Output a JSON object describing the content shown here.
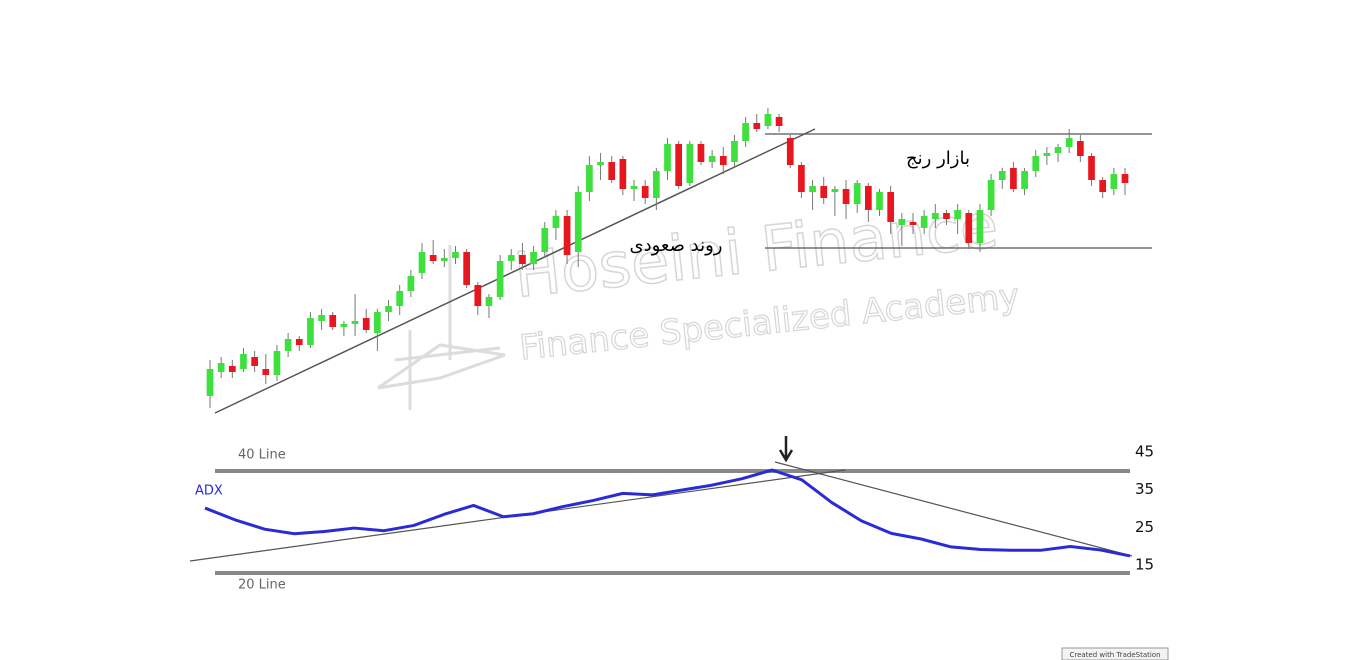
{
  "chart_data": [
    {
      "type": "candlestick",
      "annotations": [
        "روند صعودی",
        "بازار رنج"
      ],
      "open": [
        8,
        16,
        18,
        17,
        21,
        17,
        15,
        23,
        27,
        25,
        33,
        35,
        31,
        32,
        34,
        29,
        36,
        38,
        43,
        49,
        55,
        53,
        54,
        56,
        45,
        38,
        41,
        53,
        55,
        52,
        56,
        64,
        68,
        56,
        76,
        85,
        86,
        87,
        77,
        78,
        74,
        83,
        92,
        79,
        92,
        86,
        88,
        86,
        93,
        99,
        98,
        101,
        94,
        85,
        76,
        78,
        76,
        77,
        72,
        78,
        70,
        76,
        65,
        66,
        64,
        67,
        69,
        67,
        69,
        59,
        70,
        80,
        84,
        77,
        83,
        88,
        89,
        91,
        93,
        88,
        80,
        77,
        82
      ],
      "high": [
        20,
        21,
        20,
        24,
        23,
        22,
        25,
        29,
        28,
        36,
        37,
        36,
        33,
        42,
        37,
        37,
        40,
        45,
        50,
        59,
        60,
        57,
        58,
        57,
        46,
        42,
        55,
        57,
        59,
        58,
        66,
        70,
        70,
        78,
        88,
        89,
        88,
        88,
        80,
        80,
        84,
        94,
        93,
        93,
        93,
        90,
        91,
        95,
        101,
        102,
        104,
        102,
        95,
        86,
        80,
        81,
        78,
        80,
        80,
        79,
        77,
        78,
        69,
        69,
        70,
        72,
        70,
        72,
        70,
        72,
        82,
        84,
        86,
        84,
        90,
        91,
        92,
        97,
        95,
        89,
        81,
        84,
        84
      ],
      "low": [
        4,
        14,
        14,
        16,
        16,
        12,
        13,
        21,
        23,
        24,
        30,
        30,
        28,
        28,
        29,
        23,
        33,
        35,
        41,
        47,
        52,
        51,
        52,
        44,
        35,
        34,
        40,
        50,
        50,
        50,
        54,
        60,
        52,
        51,
        73,
        80,
        79,
        75,
        73,
        72,
        70,
        80,
        77,
        78,
        85,
        84,
        82,
        84,
        91,
        96,
        97,
        96,
        84,
        74,
        70,
        72,
        68,
        67,
        69,
        66,
        68,
        62,
        58,
        62,
        62,
        64,
        65,
        62,
        57,
        56,
        68,
        77,
        76,
        75,
        81,
        85,
        86,
        89,
        86,
        78,
        74,
        75,
        75
      ],
      "close": [
        17,
        19,
        16,
        22,
        18,
        15,
        23,
        27,
        25,
        34,
        35,
        31,
        32,
        33,
        30,
        36,
        38,
        43,
        48,
        56,
        53,
        54,
        56,
        45,
        38,
        41,
        53,
        55,
        52,
        56,
        64,
        68,
        55,
        76,
        85,
        86,
        80,
        77,
        78,
        74,
        83,
        92,
        78,
        92,
        86,
        88,
        85,
        93,
        99,
        97,
        102,
        98,
        85,
        76,
        78,
        74,
        77,
        72,
        79,
        70,
        76,
        66,
        67,
        65,
        68,
        69,
        67,
        70,
        59,
        70,
        80,
        83,
        77,
        83,
        88,
        89,
        91,
        94,
        88,
        80,
        76,
        82,
        79
      ],
      "up_color": "#3ee03e",
      "down_color": "#e8161e",
      "ylim": [
        0,
        110
      ]
    },
    {
      "type": "line",
      "series": [
        {
          "name": "ADX",
          "color": "#2b2bd6",
          "values": [
            30.1,
            27,
            24.5,
            23.3,
            23.9,
            24.8,
            24.1,
            25.5,
            28.4,
            30.8,
            27.8,
            28.6,
            30.5,
            32.1,
            34,
            33.6,
            34.9,
            36.2,
            37.9,
            40.2,
            37.6,
            31.6,
            26.7,
            23.4,
            21.9,
            19.8,
            19.1,
            18.9,
            18.9,
            19.9,
            19,
            17.4
          ]
        }
      ],
      "ylim": [
        8,
        48
      ],
      "yticks": [
        45,
        35,
        25,
        15
      ],
      "annotations": [
        "40 Line",
        "20 Line"
      ]
    }
  ],
  "watermark": {
    "title": "Hoseini Finance",
    "subtitle": "Finance Specialized Academy"
  },
  "footer": "Created with TradeStation"
}
